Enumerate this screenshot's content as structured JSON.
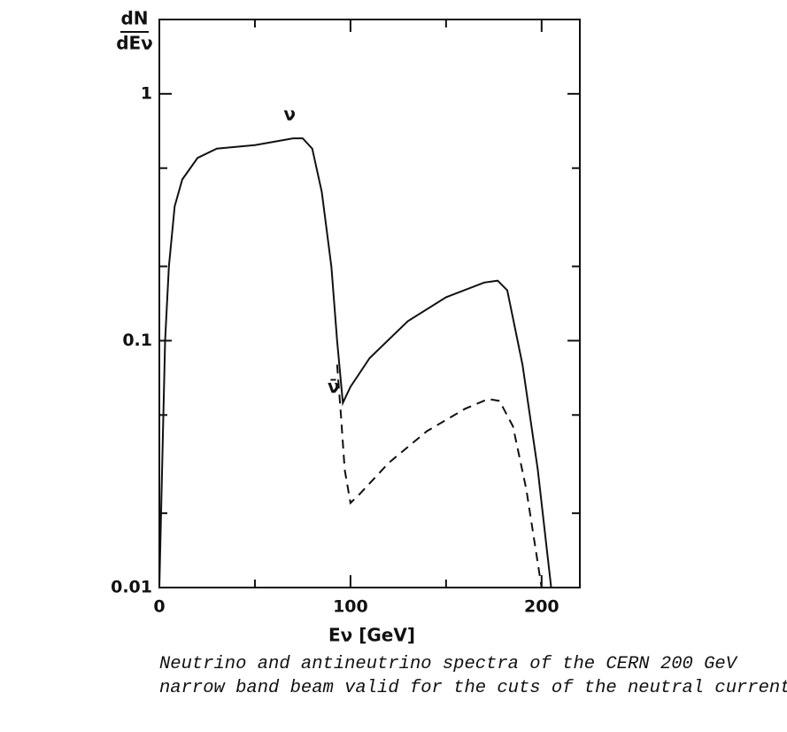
{
  "chart_data": {
    "type": "line",
    "y_label_top": "dN",
    "y_label_bottom": "dEν",
    "x_label": "Eν  [GeV]",
    "log_y": true,
    "xlim": [
      0,
      220
    ],
    "xticks": [
      0,
      100,
      200
    ],
    "xminor": [
      50,
      150
    ],
    "ylim": [
      0.01,
      2
    ],
    "yticks": [
      0.01,
      0.1,
      1
    ],
    "yminor": [
      0.02,
      0.05,
      0.2,
      0.5
    ],
    "series": [
      {
        "name": "ν",
        "color": "#111",
        "dash": false,
        "x": [
          0,
          3,
          5,
          8,
          12,
          20,
          30,
          50,
          70,
          75,
          80,
          85,
          90,
          93,
          96,
          100,
          110,
          130,
          150,
          170,
          177,
          182,
          190,
          198,
          205
        ],
        "values": [
          0.01,
          0.1,
          0.2,
          0.35,
          0.45,
          0.55,
          0.6,
          0.62,
          0.66,
          0.66,
          0.6,
          0.4,
          0.2,
          0.1,
          0.056,
          0.065,
          0.085,
          0.12,
          0.15,
          0.172,
          0.175,
          0.16,
          0.08,
          0.03,
          0.01
        ]
      },
      {
        "name": "ν̄",
        "color": "#111",
        "dash": true,
        "x": [
          93,
          95,
          97,
          100,
          105,
          120,
          140,
          160,
          172,
          178,
          185,
          192,
          200
        ],
        "values": [
          0.08,
          0.05,
          0.03,
          0.022,
          0.024,
          0.032,
          0.043,
          0.053,
          0.058,
          0.057,
          0.045,
          0.025,
          0.01
        ]
      }
    ],
    "caption": [
      "Neutrino and antineutrino spectra of the CERN 200 GeV",
      "narrow band beam valid for the cuts of the neutral current"
    ]
  }
}
